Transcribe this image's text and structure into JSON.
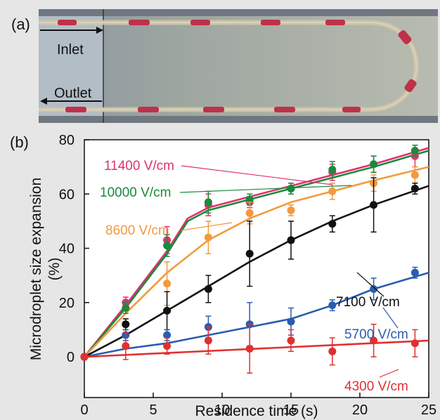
{
  "panel_a": {
    "label": "(a)",
    "inlet_label": "Inlet",
    "outlet_label": "Outlet"
  },
  "panel_b": {
    "label": "(b)"
  },
  "chart_data": {
    "type": "scatter",
    "xlabel": "Residence time (s)",
    "ylabel": "Microdroplet size expansion (%)",
    "xlim": [
      0,
      25
    ],
    "ylim": [
      -15,
      80
    ],
    "xticks": [
      0,
      5,
      10,
      15,
      20,
      25
    ],
    "yticks": [
      0,
      20,
      40,
      60,
      80
    ],
    "grid": false,
    "series": [
      {
        "name": "11400 V/cm",
        "color": "#e0326e",
        "x": [
          0,
          3,
          6,
          9,
          12,
          15,
          18,
          21,
          24
        ],
        "y": [
          0,
          20,
          43,
          56,
          57,
          62,
          68,
          71,
          74
        ],
        "err": [
          0,
          2,
          5,
          4,
          2,
          2,
          3,
          3,
          4
        ],
        "fit_x": [
          0,
          3,
          6,
          7.5,
          9,
          12,
          15,
          18,
          21,
          25
        ],
        "fit_y": [
          0,
          19,
          39,
          51,
          55,
          59,
          63,
          67,
          71,
          77
        ]
      },
      {
        "name": "10000 V/cm",
        "color": "#1a8a3c",
        "x": [
          0,
          3,
          6,
          9,
          12,
          15,
          18,
          21,
          24
        ],
        "y": [
          0,
          18,
          41,
          57,
          58,
          62,
          69,
          71,
          76
        ],
        "err": [
          0,
          2,
          4,
          4,
          2,
          2,
          3,
          3,
          2
        ],
        "fit_x": [
          0,
          3,
          6,
          7.5,
          9,
          12,
          15,
          18,
          21,
          25
        ],
        "fit_y": [
          0,
          18,
          38,
          50,
          54,
          58,
          62,
          66,
          70,
          76
        ]
      },
      {
        "name": "8600 V/cm",
        "color": "#f29a3d",
        "x": [
          0,
          3,
          6,
          9,
          12,
          15,
          18,
          21,
          24
        ],
        "y": [
          0,
          12,
          27,
          44,
          53,
          54,
          61,
          64,
          67
        ],
        "err": [
          0,
          2,
          8,
          6,
          4,
          2,
          3,
          3,
          3
        ],
        "fit_x": [
          0,
          3,
          6,
          9,
          12,
          15,
          18,
          21,
          25
        ],
        "fit_y": [
          0,
          16,
          31,
          43,
          51,
          57,
          61,
          65,
          70
        ]
      },
      {
        "name": "7100 V/cm",
        "color": "#111111",
        "x": [
          0,
          3,
          6,
          9,
          12,
          15,
          18,
          21,
          24
        ],
        "y": [
          0,
          12,
          17,
          25,
          38,
          43,
          49,
          56,
          62
        ],
        "err": [
          0,
          2,
          7,
          5,
          12,
          7,
          3,
          10,
          2
        ],
        "fit_x": [
          0,
          3,
          6,
          9,
          12,
          15,
          18,
          21,
          25
        ],
        "fit_y": [
          0,
          8,
          17,
          26,
          35,
          43,
          50,
          56,
          63
        ]
      },
      {
        "name": "5700 V/cm",
        "color": "#2a5cb0",
        "x": [
          0,
          3,
          6,
          9,
          12,
          15,
          18,
          21,
          24
        ],
        "y": [
          0,
          8,
          8,
          11,
          12,
          13,
          19,
          25,
          31
        ],
        "err": [
          0,
          2,
          2,
          4,
          8,
          5,
          2,
          4,
          2
        ],
        "fit_x": [
          0,
          3,
          6,
          9,
          12,
          15,
          18,
          21,
          25
        ],
        "fit_y": [
          0,
          3,
          5,
          8,
          11,
          14,
          19,
          25,
          31
        ]
      },
      {
        "name": "4300 V/cm",
        "color": "#e03030",
        "x": [
          0,
          3,
          6,
          9,
          12,
          15,
          18,
          21,
          24
        ],
        "y": [
          0,
          4,
          4,
          6,
          3,
          6,
          2,
          6,
          5
        ],
        "err": [
          0,
          5,
          3,
          5,
          9,
          4,
          5,
          6,
          5
        ],
        "fit_x": [
          0,
          25
        ],
        "fit_y": [
          0,
          6
        ]
      }
    ]
  }
}
